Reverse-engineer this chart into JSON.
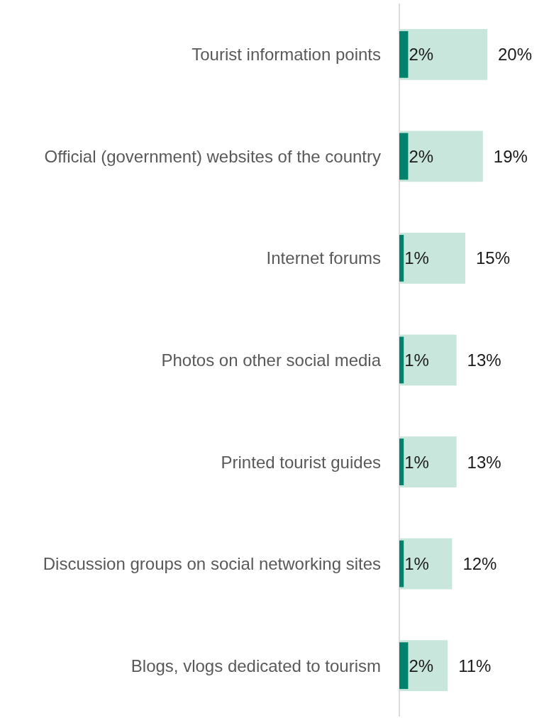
{
  "chart_data": {
    "type": "bar",
    "orientation": "horizontal",
    "categories": [
      "Tourist information points",
      "Official (government) websites of the country",
      "Internet forums",
      "Photos on other social media",
      "Printed tourist guides",
      "Discussion groups on social networking sites",
      "Blogs, vlogs dedicated to tourism"
    ],
    "series": [
      {
        "color": "#c8e6dc",
        "values": [
          20,
          19,
          15,
          13,
          13,
          12,
          11
        ],
        "value_labels": [
          "20%",
          "19%",
          "15%",
          "13%",
          "13%",
          "12%",
          "11%"
        ]
      },
      {
        "color": "#00826c",
        "values": [
          2,
          2,
          1,
          1,
          1,
          1,
          2
        ],
        "value_labels": [
          "2%",
          "2%",
          "1%",
          "1%",
          "1%",
          "1%",
          "2%"
        ]
      }
    ]
  }
}
